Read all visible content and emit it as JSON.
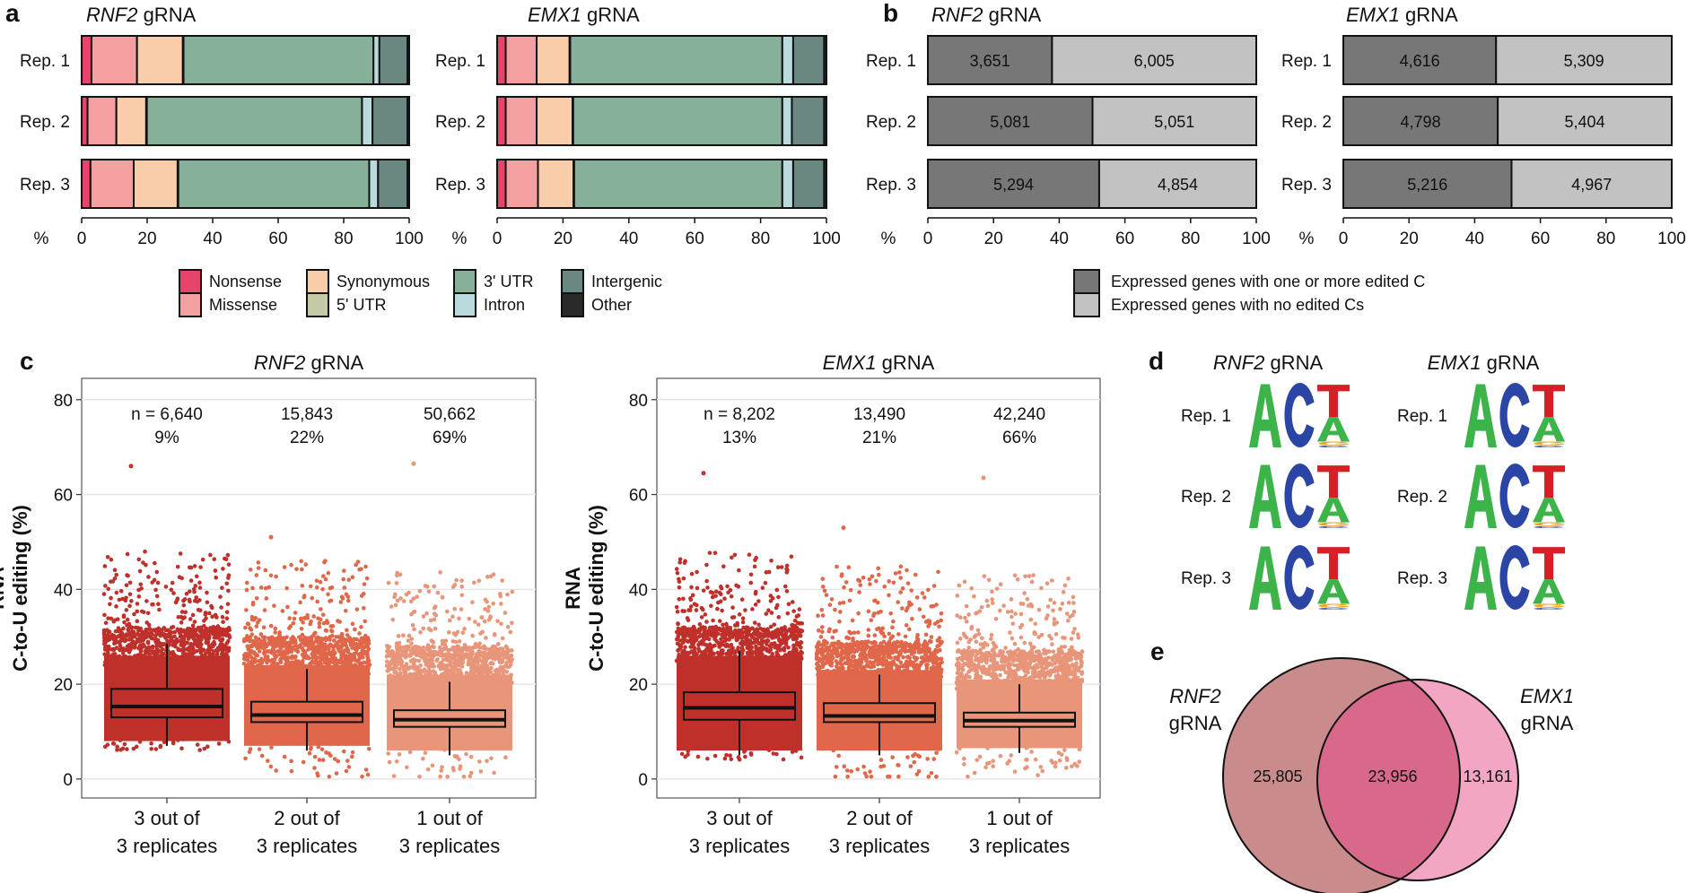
{
  "colors": {
    "Nonsense": "#e8436a",
    "Missense": "#f4a0a0",
    "Synonymous": "#f9cda9",
    "5' UTR": "#c5c9a5",
    "3' UTR": "#86b09a",
    "Intron": "#badbdd",
    "Intergenic": "#6a8782",
    "Other": "#2a2a2a",
    "edited": "#777777",
    "not_edited": "#c2c2c2",
    "groups": [
      "#c0302b",
      "#e0674a",
      "#e8957a"
    ],
    "venn_left": "#c98b8c",
    "venn_overlap": "#d9698a",
    "venn_right": "#f3a6c4",
    "logo": {
      "A": "#3cb44a",
      "C": "#2b45a6",
      "G": "#f3a51f",
      "T": "#d42027"
    }
  },
  "chart_data": [
    {
      "panel": "a",
      "type": "bar",
      "orientation": "horizontal-stacked",
      "xlabel": "%",
      "xlim": [
        0,
        100
      ],
      "xticks": [
        "0",
        "20",
        "40",
        "60",
        "80",
        "100"
      ],
      "legend": [
        "Nonsense",
        "Missense",
        "Synonymous",
        "5' UTR",
        "3' UTR",
        "Intron",
        "Intergenic",
        "Other"
      ],
      "legend_placement": "bottom",
      "charts": [
        {
          "title_gene": "RNF2",
          "title_suffix": " gRNA",
          "categories": [
            "Rep. 1",
            "Rep. 2",
            "Rep. 3"
          ],
          "values": [
            [
              3.0,
              13.9,
              14.0,
              0.2,
              58.0,
              1.8,
              8.6,
              0.5
            ],
            [
              1.8,
              8.8,
              9.1,
              0.2,
              65.7,
              3.2,
              10.7,
              0.5
            ],
            [
              2.7,
              13.2,
              13.4,
              0.2,
              58.3,
              2.7,
              9.0,
              0.5
            ]
          ]
        },
        {
          "title_gene": "EMX1",
          "title_suffix": " gRNA",
          "categories": [
            "Rep. 1",
            "Rep. 2",
            "Rep. 3"
          ],
          "values": [
            [
              2.6,
              9.4,
              10.0,
              0.2,
              64.4,
              3.3,
              9.4,
              0.7
            ],
            [
              2.6,
              9.4,
              10.9,
              0.2,
              63.5,
              2.9,
              9.8,
              0.7
            ],
            [
              2.6,
              9.8,
              10.8,
              0.2,
              63.2,
              3.3,
              9.4,
              0.7
            ]
          ]
        }
      ]
    },
    {
      "panel": "b",
      "type": "bar",
      "orientation": "horizontal-stacked-percent",
      "xlabel": "%",
      "xlim": [
        0,
        100
      ],
      "xticks": [
        "0",
        "20",
        "40",
        "60",
        "80",
        "100"
      ],
      "legend": [
        "Expressed genes with one or more edited C",
        "Expressed genes with no edited Cs"
      ],
      "legend_placement": "bottom",
      "charts": [
        {
          "title_gene": "RNF2",
          "title_suffix": " gRNA",
          "categories": [
            "Rep. 1",
            "Rep. 2",
            "Rep. 3"
          ],
          "values": [
            [
              3651,
              6005
            ],
            [
              5081,
              5051
            ],
            [
              5294,
              4854
            ]
          ],
          "labels": [
            [
              "3,651",
              "6,005"
            ],
            [
              "5,081",
              "5,051"
            ],
            [
              "5,294",
              "4,854"
            ]
          ]
        },
        {
          "title_gene": "EMX1",
          "title_suffix": " gRNA",
          "categories": [
            "Rep. 1",
            "Rep. 2",
            "Rep. 3"
          ],
          "values": [
            [
              4616,
              5309
            ],
            [
              4798,
              5404
            ],
            [
              5216,
              4967
            ]
          ],
          "labels": [
            [
              "4,616",
              "5,309"
            ],
            [
              "4,798",
              "5,404"
            ],
            [
              "5,216",
              "4,967"
            ]
          ]
        }
      ]
    },
    {
      "panel": "c",
      "type": "scatter",
      "subtype": "jittered points with boxplot",
      "ylabel_line1": "RNA",
      "ylabel_line2": "C-to-U editing (%)",
      "ylim": [
        -4,
        84.5
      ],
      "yticks": [
        "0",
        "20",
        "40",
        "60",
        "80"
      ],
      "grid": true,
      "categories": [
        [
          "3 out of",
          "3 replicates"
        ],
        [
          "2 out of",
          "3 replicates"
        ],
        [
          "1 out of",
          "3 replicates"
        ]
      ],
      "charts": [
        {
          "title_gene": "RNF2",
          "title_suffix": " gRNA",
          "annotations": [
            [
              "n = 6,640",
              "9%"
            ],
            [
              "15,843",
              "22%"
            ],
            [
              "50,662",
              "69%"
            ]
          ],
          "boxes": [
            {
              "whisker_low": 7,
              "q1": 13,
              "median": 15.3,
              "q3": 19,
              "whisker_high": 28.5,
              "bulk_max": 30,
              "max": 66
            },
            {
              "whisker_low": 6,
              "q1": 12,
              "median": 13.5,
              "q3": 16.3,
              "whisker_high": 23.2,
              "bulk_max": 28,
              "max": 51
            },
            {
              "whisker_low": 5,
              "q1": 11,
              "median": 12.5,
              "q3": 14.5,
              "whisker_high": 20.5,
              "bulk_max": 26,
              "max": 66.5
            }
          ]
        },
        {
          "title_gene": "EMX1",
          "title_suffix": " gRNA",
          "annotations": [
            [
              "n = 8,202",
              "13%"
            ],
            [
              "13,490",
              "21%"
            ],
            [
              "42,240",
              "66%"
            ]
          ],
          "boxes": [
            {
              "whisker_low": 5,
              "q1": 12.5,
              "median": 15,
              "q3": 18.3,
              "whisker_high": 27,
              "bulk_max": 30,
              "max": 64.5
            },
            {
              "whisker_low": 5,
              "q1": 12,
              "median": 13.3,
              "q3": 16,
              "whisker_high": 22,
              "bulk_max": 27,
              "max": 53
            },
            {
              "whisker_low": 5.5,
              "q1": 11,
              "median": 12.3,
              "q3": 14,
              "whisker_high": 20,
              "bulk_max": 25,
              "max": 63.5
            }
          ]
        }
      ]
    },
    {
      "panel": "d",
      "type": "other",
      "subtype": "sequence logo",
      "charts": [
        {
          "title_gene": "RNF2",
          "title_suffix": " gRNA",
          "rows": [
            "Rep. 1",
            "Rep. 2",
            "Rep. 3"
          ]
        },
        {
          "title_gene": "EMX1",
          "title_suffix": " gRNA",
          "rows": [
            "Rep. 1",
            "Rep. 2",
            "Rep. 3"
          ]
        }
      ],
      "positions": [
        [
          {
            "base": "A",
            "height": 0.98
          }
        ],
        [
          {
            "base": "C",
            "height": 1.0
          }
        ],
        [
          {
            "base": "T",
            "height": 0.5
          },
          {
            "base": "A",
            "height": 0.38
          },
          {
            "base": "G",
            "height": 0.06
          },
          {
            "base": "C",
            "height": 0.03
          }
        ]
      ]
    },
    {
      "panel": "e",
      "type": "other",
      "subtype": "venn",
      "sets": [
        {
          "gene": "RNF2",
          "suffix": "gRNA"
        },
        {
          "gene": "EMX1",
          "suffix": "gRNA"
        }
      ],
      "only_left": "25,805",
      "overlap": "23,956",
      "only_right": "13,161"
    }
  ]
}
